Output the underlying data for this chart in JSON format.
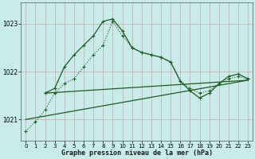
{
  "background_color": "#c8ecea",
  "grid_color": "#d4a0a8",
  "line_color": "#1e5c1e",
  "xlim": [
    -0.5,
    23.5
  ],
  "ylim": [
    1020.55,
    1023.45
  ],
  "yticks": [
    1021,
    1022,
    1023
  ],
  "xticks": [
    0,
    1,
    2,
    3,
    4,
    5,
    6,
    7,
    8,
    9,
    10,
    11,
    12,
    13,
    14,
    15,
    16,
    17,
    18,
    19,
    20,
    21,
    22,
    23
  ],
  "xlabel": "Graphe pression niveau de la mer (hPa)",
  "dotted_series": {
    "x": [
      0,
      1,
      2,
      3,
      4,
      5,
      6,
      7,
      8,
      9,
      10,
      11,
      12,
      13,
      14,
      15,
      16,
      17,
      18,
      19,
      20,
      21,
      22,
      23
    ],
    "y": [
      1020.75,
      1020.95,
      1021.2,
      1021.55,
      1021.75,
      1021.85,
      1022.1,
      1022.35,
      1022.55,
      1023.05,
      1022.75,
      1022.5,
      1022.4,
      1022.35,
      1022.3,
      1022.2,
      1021.8,
      1021.65,
      1021.55,
      1021.6,
      1021.75,
      1021.85,
      1021.9,
      1021.85
    ]
  },
  "solid_series": {
    "x": [
      2,
      3,
      4,
      5,
      6,
      7,
      8,
      9,
      10,
      11,
      12,
      13,
      14,
      15,
      16,
      17,
      18,
      19,
      20,
      21,
      22,
      23
    ],
    "y": [
      1021.55,
      1021.65,
      1022.1,
      1022.35,
      1022.55,
      1022.75,
      1023.05,
      1023.1,
      1022.85,
      1022.5,
      1022.4,
      1022.35,
      1022.3,
      1022.2,
      1021.8,
      1021.6,
      1021.45,
      1021.55,
      1021.75,
      1021.9,
      1021.95,
      1021.85
    ]
  },
  "trend1": {
    "x": [
      0,
      23
    ],
    "y": [
      1021.0,
      1021.82
    ]
  },
  "trend2": {
    "x": [
      2,
      23
    ],
    "y": [
      1021.55,
      1021.82
    ]
  }
}
